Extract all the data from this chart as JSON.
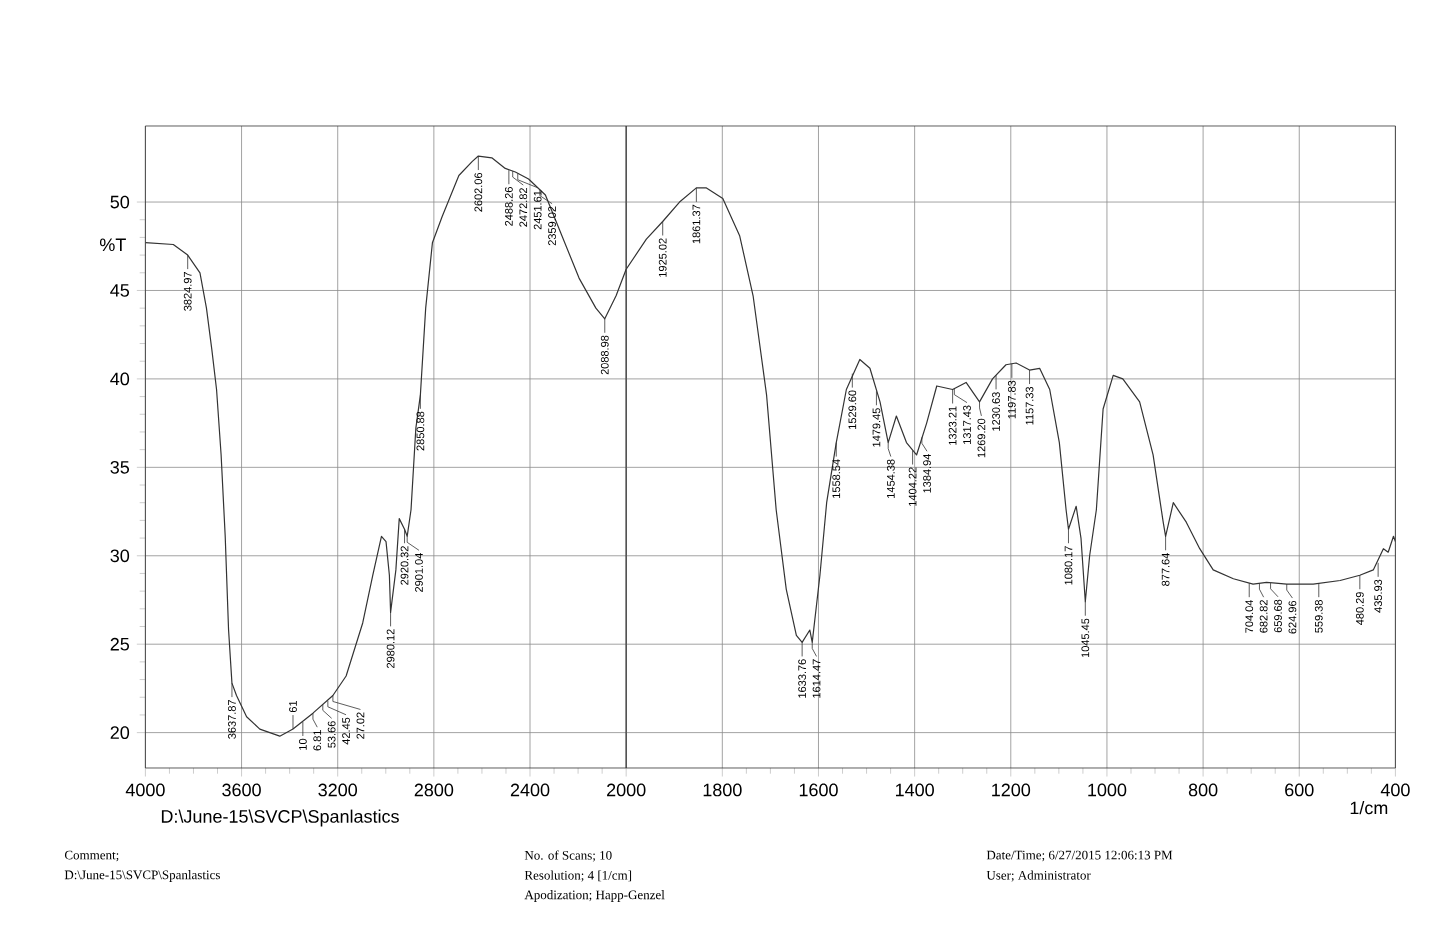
{
  "chart_data": [
    {
      "type": "line",
      "ylabel": "%T",
      "x": [
        4000,
        3884,
        3824,
        3773,
        3746,
        3724,
        3704,
        3685,
        3668,
        3654,
        3640,
        3621,
        3579,
        3524,
        3441,
        3386,
        3303,
        3220,
        3165,
        3096,
        3054,
        3018,
        2999,
        2985,
        2980,
        2958,
        2944,
        2922,
        2911,
        2895,
        2875,
        2856,
        2834,
        2806,
        2765,
        2696,
        2640,
        2615,
        2559,
        2503,
        2461,
        2406,
        2336,
        2196,
        2126,
        2089,
        2042,
        2000
      ],
      "series": [
        {
          "color": "#333333",
          "values": [
            47.7,
            47.6,
            47.0,
            46.0,
            44.0,
            41.7,
            39.4,
            35.7,
            31.1,
            25.8,
            22.8,
            22.1,
            20.9,
            20.2,
            19.8,
            20.2,
            21.1,
            22.1,
            23.2,
            26.2,
            28.9,
            31.1,
            30.8,
            28.9,
            26.8,
            29.2,
            32.1,
            31.5,
            31.1,
            32.6,
            37.2,
            39.1,
            44.0,
            47.7,
            49.2,
            51.5,
            52.3,
            52.6,
            52.5,
            51.9,
            51.7,
            51.3,
            50.4,
            45.7,
            44.0,
            43.4,
            44.7,
            46.2
          ]
        }
      ],
      "xlim": [
        4000,
        2000
      ],
      "xticks": [
        4000,
        3600,
        3200,
        2800,
        2400,
        2000
      ],
      "ylim": [
        18,
        54.3
      ],
      "yticks": [
        20,
        25,
        30,
        35,
        40,
        45,
        50
      ],
      "grid": true,
      "annotations": [
        "D:\\June-15\\SVCP\\Spanlastics",
        "Comment;",
        "D:\\June-15\\SVCP\\Spanlastics",
        "No. of Scans; 10",
        "Resolution; 4 [1/cm]",
        "Apodization; Happ-Genzel",
        "Date/Time; 6/27/2015 12:06:13 PM",
        "User; Administrator",
        {
          "text": "3824.97",
          "x": 3824,
          "y": 47.0
        },
        {
          "text": "3637.87",
          "x": 3640,
          "y": 22.8
        },
        {
          "text": "61",
          "x": 3386,
          "y": 20.2
        },
        {
          "text": "10",
          "x": 3345,
          "y": 20.6
        },
        {
          "text": "6.81",
          "x": 3303,
          "y": 21.1
        },
        {
          "text": "53.66",
          "x": 3262,
          "y": 21.6
        },
        {
          "text": "42.45",
          "x": 3241,
          "y": 21.8
        },
        {
          "text": "27.02",
          "x": 3220,
          "y": 22.1
        },
        {
          "text": "2980.12",
          "x": 2980,
          "y": 26.8
        },
        {
          "text": "2920.32",
          "x": 2922,
          "y": 31.5
        },
        {
          "text": "2901.04",
          "x": 2911,
          "y": 31.1
        },
        {
          "text": "2850.88",
          "x": 2856,
          "y": 39.1
        },
        {
          "text": "2602.06",
          "x": 2615,
          "y": 52.6
        },
        {
          "text": "2488.26",
          "x": 2488,
          "y": 51.8
        },
        {
          "text": "2472.82",
          "x": 2472,
          "y": 51.75
        },
        {
          "text": "2451.61",
          "x": 2451,
          "y": 51.6
        },
        {
          "text": "2359.02",
          "x": 2359,
          "y": 50.7
        },
        {
          "text": "2088.98",
          "x": 2089,
          "y": 43.4
        }
      ]
    },
    {
      "type": "line",
      "xlabel": "1/cm",
      "x": [
        2000,
        1958,
        1924,
        1889,
        1854,
        1833,
        1799,
        1764,
        1736,
        1708,
        1688,
        1667,
        1646,
        1634,
        1618,
        1613,
        1597,
        1583,
        1563,
        1542,
        1514,
        1493,
        1472,
        1455,
        1438,
        1417,
        1396,
        1375,
        1354,
        1321,
        1293,
        1265,
        1238,
        1210,
        1189,
        1161,
        1140,
        1119,
        1099,
        1085,
        1080,
        1064,
        1054,
        1045,
        1036,
        1022,
        1008,
        987,
        967,
        932,
        904,
        883,
        878,
        862,
        835,
        807,
        779,
        737,
        696,
        668,
        626,
        571,
        515,
        474,
        446,
        425,
        415,
        404,
        400
      ],
      "series": [
        {
          "color": "#333333",
          "values": [
            46.2,
            47.9,
            48.9,
            50.0,
            50.8,
            50.8,
            50.2,
            48.1,
            44.7,
            39.1,
            32.6,
            28.1,
            25.5,
            25.1,
            25.8,
            25.1,
            28.9,
            33.0,
            36.4,
            39.4,
            41.1,
            40.6,
            38.7,
            36.4,
            37.9,
            36.4,
            35.7,
            37.5,
            39.6,
            39.4,
            39.8,
            38.7,
            40.0,
            40.8,
            40.9,
            40.5,
            40.6,
            39.4,
            36.4,
            32.6,
            31.5,
            32.8,
            31.0,
            27.4,
            30.0,
            32.6,
            38.3,
            40.2,
            40.0,
            38.7,
            35.7,
            31.9,
            31.1,
            33.0,
            31.9,
            30.4,
            29.2,
            28.7,
            28.4,
            28.5,
            28.4,
            28.4,
            28.6,
            28.9,
            29.2,
            30.4,
            30.2,
            31.1,
            30.8
          ]
        }
      ],
      "xlim": [
        2000,
        400
      ],
      "xticks": [
        1800,
        1600,
        1400,
        1200,
        1000,
        800,
        600,
        400
      ],
      "ylim": [
        18,
        54.3
      ],
      "yticks": [
        20,
        25,
        30,
        35,
        40,
        45,
        50
      ],
      "grid": true,
      "tick_labels": "x",
      "annotations": [
        {
          "text": "1925.02",
          "x": 1924,
          "y": 48.9
        },
        {
          "text": "1861.37",
          "x": 1854,
          "y": 50.8
        },
        {
          "text": "1633.76",
          "x": 1634,
          "y": 25.1
        },
        {
          "text": "1614.47",
          "x": 1613,
          "y": 25.1
        },
        {
          "text": "1558.54",
          "x": 1563,
          "y": 36.4
        },
        {
          "text": "1529.60",
          "x": 1529.6,
          "y": 40.3
        },
        {
          "text": "1479.45",
          "x": 1479.45,
          "y": 39.3
        },
        {
          "text": "1454.38",
          "x": 1455,
          "y": 36.4
        },
        {
          "text": "1404.22",
          "x": 1404.22,
          "y": 35.95
        },
        {
          "text": "1384.94",
          "x": 1384.94,
          "y": 36.7
        },
        {
          "text": "1323.21",
          "x": 1321,
          "y": 39.4
        },
        {
          "text": "1317.43",
          "x": 1317.43,
          "y": 39.45
        },
        {
          "text": "1269.20",
          "x": 1265,
          "y": 38.7
        },
        {
          "text": "1230.63",
          "x": 1230.63,
          "y": 40.2
        },
        {
          "text": "1197.83",
          "x": 1197.83,
          "y": 40.85
        },
        {
          "text": "1157.33",
          "x": 1161,
          "y": 40.5
        },
        {
          "text": "1080.17",
          "x": 1080,
          "y": 31.5
        },
        {
          "text": "1045.45",
          "x": 1045,
          "y": 27.4
        },
        {
          "text": "877.64",
          "x": 878,
          "y": 31.1
        },
        {
          "text": "704.04",
          "x": 704.04,
          "y": 28.45
        },
        {
          "text": "682.82",
          "x": 682.82,
          "y": 28.45
        },
        {
          "text": "659.68",
          "x": 659.68,
          "y": 28.47
        },
        {
          "text": "624.96",
          "x": 626,
          "y": 28.4
        },
        {
          "text": "559.38",
          "x": 559.38,
          "y": 28.45
        },
        {
          "text": "480.29",
          "x": 474,
          "y": 28.9
        },
        {
          "text": "435.93",
          "x": 435.93,
          "y": 29.6
        }
      ]
    }
  ]
}
